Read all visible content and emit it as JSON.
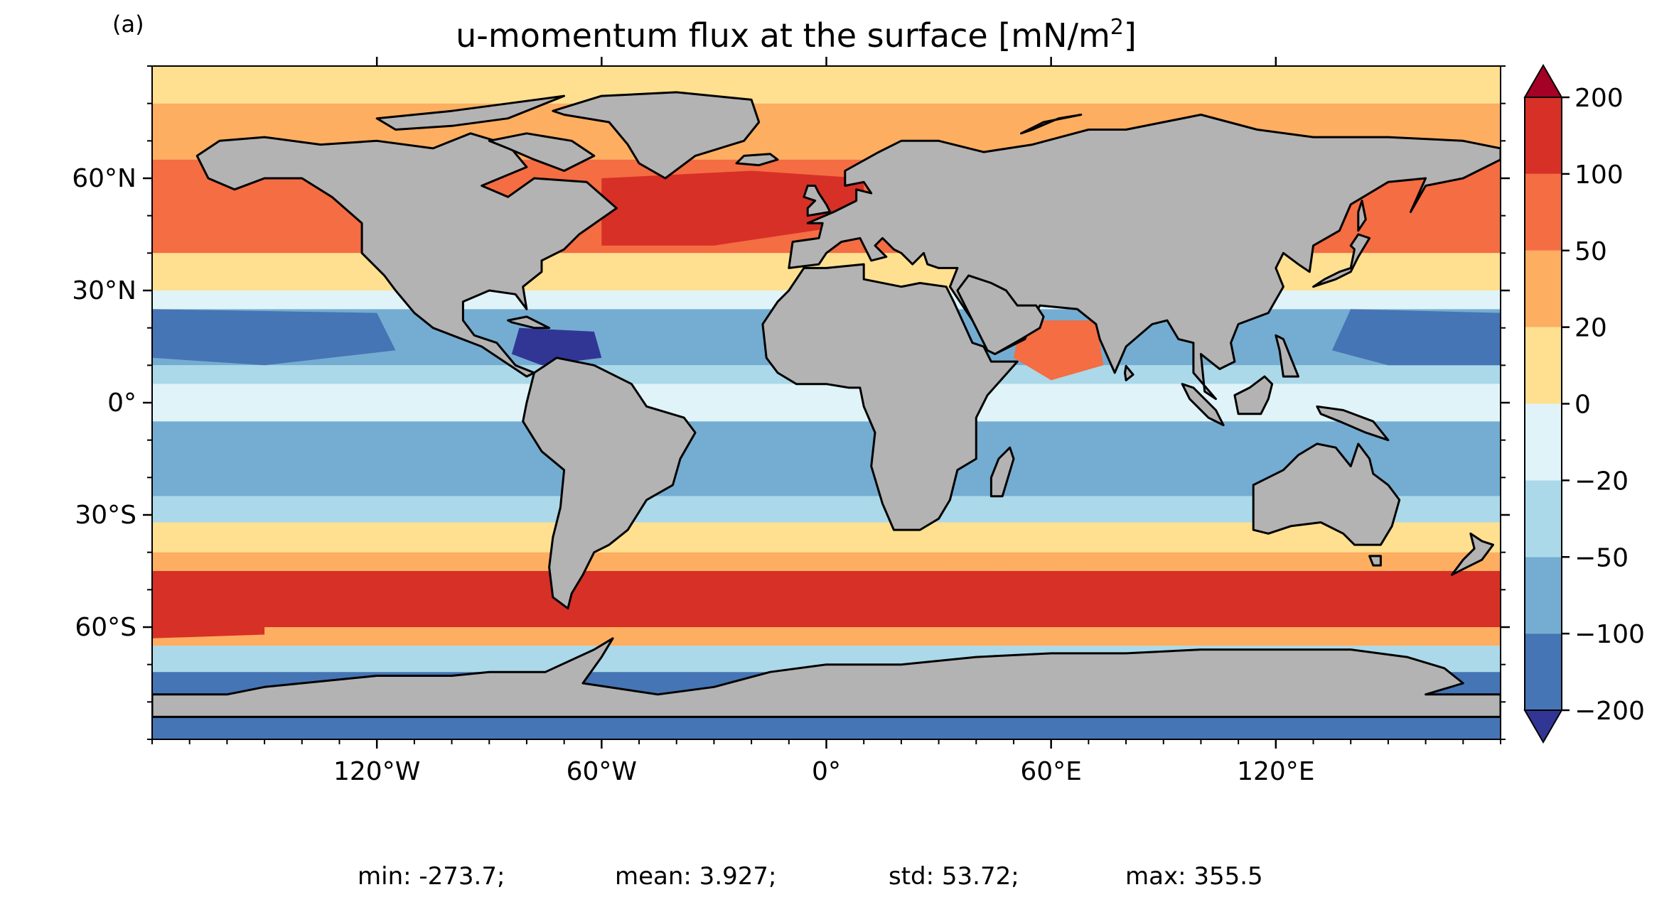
{
  "panel_label": "(a)",
  "title_main": "u-momentum flux at the surface [mN/m",
  "title_sup": "2",
  "title_end": "]",
  "lat_labels": [
    "60°N",
    "30°N",
    "0°",
    "30°S",
    "60°S"
  ],
  "lat_values": [
    60,
    30,
    0,
    -30,
    -60
  ],
  "lon_labels": [
    "120°W",
    "60°W",
    "0°",
    "60°E",
    "120°E"
  ],
  "lon_values": [
    -120,
    -60,
    0,
    60,
    120
  ],
  "colorbar": {
    "levels": [
      -200,
      -100,
      -50,
      -20,
      0,
      20,
      50,
      100,
      200
    ],
    "tick_labels": [
      "−200",
      "−100",
      "−50",
      "−20",
      "0",
      "20",
      "50",
      "100",
      "200"
    ],
    "colors": [
      "#4575b4",
      "#74add1",
      "#abd9e9",
      "#e0f3f8",
      "#fee090",
      "#fdae61",
      "#f46d43",
      "#d73027"
    ],
    "under_color": "#313695",
    "over_color": "#a50026"
  },
  "land_color": "#b3b3b3",
  "stats": {
    "min": "min: -273.7;",
    "mean": "mean: 3.927;",
    "std": "std: 53.72;",
    "max": "max: 355.5"
  },
  "chart_data": {
    "type": "heatmap",
    "title": "u-momentum flux at the surface [mN/m2]",
    "variable": "u-momentum flux at the surface",
    "units": "mN/m2",
    "lon_range": [
      -180,
      180
    ],
    "lat_range": [
      -90,
      90
    ],
    "zonal_bands": [
      {
        "lat": [
          80,
          90
        ],
        "value": 10
      },
      {
        "lat": [
          65,
          80
        ],
        "value": 25
      },
      {
        "lat": [
          40,
          65
        ],
        "value": 60
      },
      {
        "lat": [
          30,
          40
        ],
        "value": 10
      },
      {
        "lat": [
          25,
          30
        ],
        "value": -15
      },
      {
        "lat": [
          10,
          25
        ],
        "value": -75
      },
      {
        "lat": [
          5,
          10
        ],
        "value": -35
      },
      {
        "lat": [
          -5,
          5
        ],
        "value": -15
      },
      {
        "lat": [
          -25,
          -5
        ],
        "value": -60
      },
      {
        "lat": [
          -32,
          -25
        ],
        "value": -25
      },
      {
        "lat": [
          -40,
          -32
        ],
        "value": 10
      },
      {
        "lat": [
          -45,
          -40
        ],
        "value": 35
      },
      {
        "lat": [
          -60,
          -45
        ],
        "value": 120
      },
      {
        "lat": [
          -65,
          -60
        ],
        "value": 35
      },
      {
        "lat": [
          -72,
          -65
        ],
        "value": -30
      },
      {
        "lat": [
          -90,
          -72
        ],
        "value": -120
      }
    ],
    "highlights": [
      {
        "region": "North Atlantic 45-60N",
        "value": 120
      },
      {
        "region": "Pacific trades 10-25N",
        "value": -120
      },
      {
        "region": "Caribbean",
        "value": -250
      },
      {
        "region": "Southern Ocean 50-60S",
        "value": 150
      },
      {
        "region": "Arabian Sea",
        "value": 70
      }
    ],
    "stats": {
      "min": -273.7,
      "mean": 3.927,
      "std": 53.72,
      "max": 355.5
    },
    "colorbar_levels": [
      -200,
      -100,
      -50,
      -20,
      0,
      20,
      50,
      100,
      200
    ],
    "extend": "both"
  }
}
